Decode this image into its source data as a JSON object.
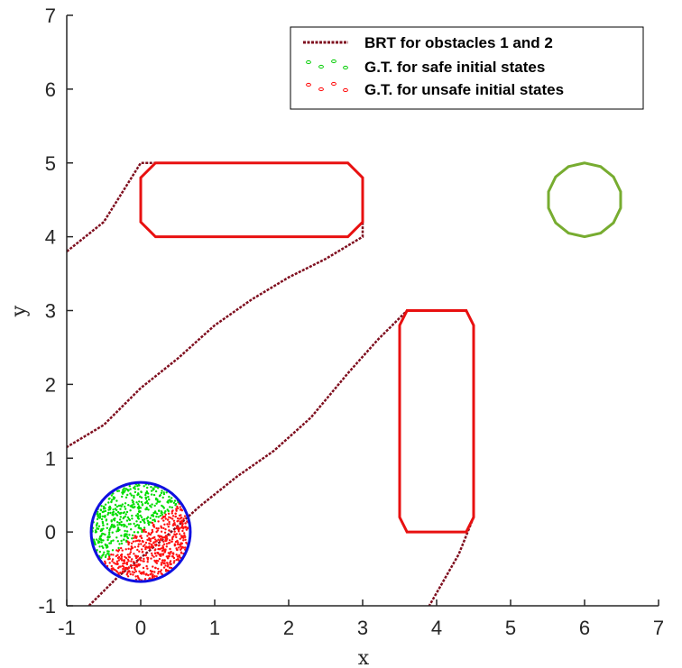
{
  "chart_data": {
    "type": "scatter",
    "xlabel": "x",
    "ylabel": "y",
    "xlim": [
      -1,
      7
    ],
    "ylim": [
      -1,
      7
    ],
    "xticks": [
      "-1",
      "0",
      "1",
      "2",
      "3",
      "4",
      "5",
      "6",
      "7"
    ],
    "yticks": [
      "-1",
      "0",
      "1",
      "2",
      "3",
      "4",
      "5",
      "6",
      "7"
    ],
    "grid": false,
    "legend_position": "top-right",
    "legend": [
      {
        "label": "BRT for obstacles 1 and 2",
        "style": "dashed-line",
        "color": "#7f0f1f"
      },
      {
        "label": "G.T. for safe initial states",
        "style": "circle-markers",
        "color": "#00cc00"
      },
      {
        "label": "G.T. for unsafe initial states",
        "style": "circle-markers",
        "color": "#ff0000"
      }
    ],
    "obstacles": [
      {
        "name": "obstacle 1",
        "color": "#e81010",
        "polygon": [
          [
            0.2,
            4
          ],
          [
            2.8,
            4
          ],
          [
            3,
            4.2
          ],
          [
            3,
            4.8
          ],
          [
            2.8,
            5
          ],
          [
            0.2,
            5
          ],
          [
            0,
            4.8
          ],
          [
            0,
            4.2
          ]
        ]
      },
      {
        "name": "obstacle 2",
        "color": "#e81010",
        "polygon": [
          [
            3.6,
            0
          ],
          [
            4.4,
            0
          ],
          [
            4.5,
            0.2
          ],
          [
            4.5,
            2.8
          ],
          [
            4.4,
            3
          ],
          [
            3.6,
            3
          ],
          [
            3.5,
            2.8
          ],
          [
            3.5,
            0.2
          ]
        ]
      }
    ],
    "goal": {
      "center": [
        6,
        4.5
      ],
      "radius": 0.5,
      "color": "#77ac30"
    },
    "initial_set": {
      "center": [
        0,
        0
      ],
      "radius": 0.67,
      "color": "#1010e0"
    },
    "brt_curves": [
      {
        "color": "#7f0f1f",
        "points": [
          [
            -1,
            3.8
          ],
          [
            -0.5,
            4.2
          ],
          [
            0,
            5
          ],
          [
            2.8,
            5
          ],
          [
            3,
            4.8
          ],
          [
            3,
            4
          ],
          [
            2.5,
            3.7
          ],
          [
            2,
            3.45
          ],
          [
            1.5,
            3.15
          ],
          [
            1,
            2.8
          ],
          [
            0.5,
            2.35
          ],
          [
            0,
            1.95
          ],
          [
            -0.5,
            1.45
          ],
          [
            -1,
            1.15
          ]
        ]
      },
      {
        "color": "#7f0f1f",
        "points": [
          [
            -0.7,
            -1
          ],
          [
            -0.3,
            -0.6
          ],
          [
            0.3,
            -0.1
          ],
          [
            0.8,
            0.35
          ],
          [
            1.3,
            0.75
          ],
          [
            1.8,
            1.1
          ],
          [
            2.3,
            1.55
          ],
          [
            2.8,
            2.15
          ],
          [
            3.2,
            2.6
          ],
          [
            3.6,
            3
          ]
        ]
      },
      {
        "color": "#7f0f1f",
        "points": [
          [
            4.5,
            0.2
          ],
          [
            4.3,
            -0.3
          ],
          [
            4.1,
            -0.65
          ],
          [
            3.9,
            -1
          ]
        ]
      }
    ],
    "safe_points": {
      "count": 450,
      "color": "#00dd00",
      "region": "upper-left half of initial set"
    },
    "unsafe_points": {
      "count": 550,
      "color": "#ff1010",
      "region": "lower-right half of initial set"
    }
  }
}
